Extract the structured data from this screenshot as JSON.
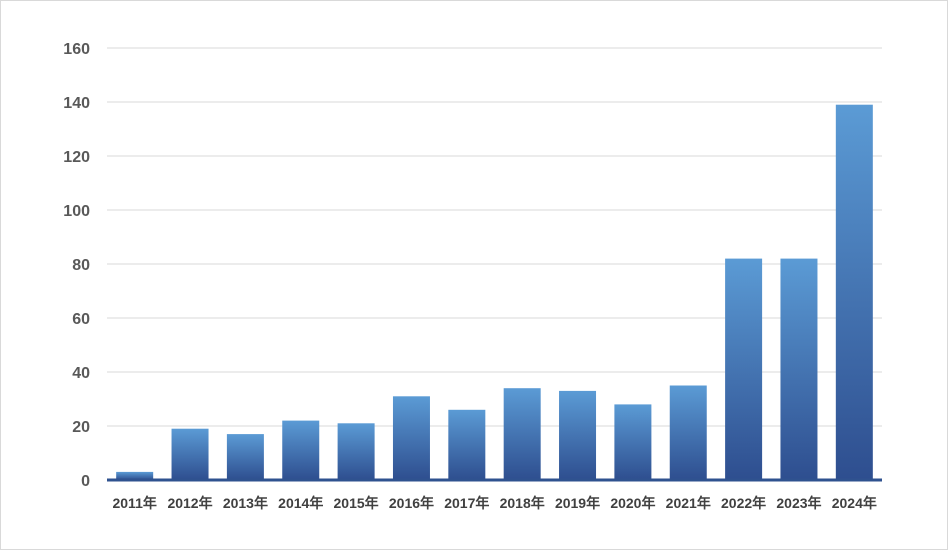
{
  "chart_data": {
    "type": "bar",
    "title": "",
    "xlabel": "",
    "ylabel": "",
    "categories": [
      "2011年",
      "2012年",
      "2013年",
      "2014年",
      "2015年",
      "2016年",
      "2017年",
      "2018年",
      "2019年",
      "2020年",
      "2021年",
      "2022年",
      "2023年",
      "2024年"
    ],
    "values": [
      3,
      19,
      17,
      22,
      21,
      31,
      26,
      34,
      33,
      28,
      35,
      82,
      82,
      139
    ],
    "ylim": [
      0,
      160
    ],
    "yticks": [
      "0",
      "20",
      "40",
      "60",
      "80",
      "100",
      "120",
      "140",
      "160"
    ],
    "grid": true,
    "legend": "none",
    "colors": {
      "bar_top": "#5b9bd5",
      "bar_bottom": "#2e4e8f",
      "axis": "#2f528f",
      "grid": "#d9d9d9"
    }
  }
}
